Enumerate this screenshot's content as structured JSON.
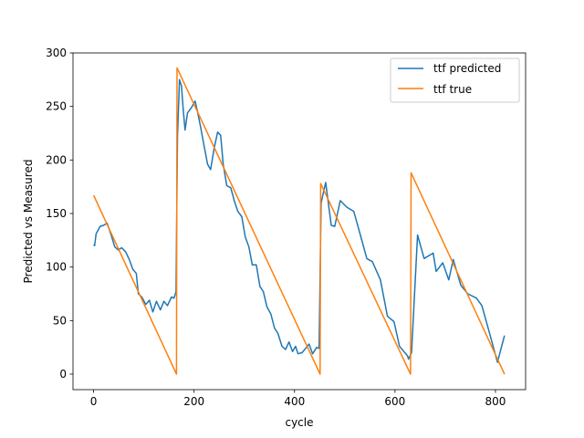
{
  "chart_data": {
    "type": "line",
    "title": "",
    "xlabel": "cycle",
    "ylabel": "Predicted vs Measured",
    "xlim": [
      -41,
      860
    ],
    "ylim": [
      -14.5,
      300
    ],
    "xticks": [
      0,
      200,
      400,
      600,
      800
    ],
    "yticks": [
      0,
      50,
      100,
      150,
      200,
      250,
      300
    ],
    "grid": false,
    "legend_position": "top-right",
    "series": [
      {
        "name": "ttf predicted",
        "color": "#1f77b4",
        "x": [
          0,
          2,
          5,
          13,
          20,
          27,
          35,
          42,
          49,
          56,
          64,
          71,
          78,
          85,
          89,
          96,
          104,
          111,
          118,
          125,
          133,
          140,
          147,
          155,
          160,
          164,
          167,
          171,
          175,
          178,
          182,
          187,
          195,
          202,
          207,
          213,
          220,
          227,
          233,
          240,
          247,
          253,
          258,
          265,
          273,
          280,
          287,
          295,
          302,
          309,
          316,
          324,
          331,
          338,
          345,
          353,
          360,
          367,
          375,
          382,
          389,
          396,
          402,
          407,
          415,
          422,
          429,
          436,
          444,
          449,
          453,
          462,
          473,
          480,
          491,
          504,
          518,
          531,
          544,
          555,
          571,
          585,
          598,
          609,
          625,
          627,
          633,
          645,
          658,
          676,
          682,
          695,
          707,
          716,
          731,
          745,
          762,
          773,
          789,
          804,
          809,
          818
        ],
        "y": [
          121,
          120,
          131,
          138,
          139,
          141,
          130,
          119,
          116,
          118,
          114,
          107,
          98,
          94,
          75,
          72,
          65,
          69,
          58,
          68,
          60,
          68,
          64,
          72,
          71,
          77,
          222,
          275,
          269,
          249,
          228,
          244,
          249,
          255,
          245,
          231,
          213,
          196,
          191,
          211,
          226,
          223,
          196,
          176,
          174,
          162,
          152,
          147,
          128,
          119,
          102,
          102,
          82,
          77,
          63,
          56,
          43,
          38,
          26,
          23,
          30,
          21,
          26,
          19,
          20,
          24,
          28,
          19,
          25,
          24,
          160,
          179,
          139,
          138,
          162,
          156,
          152,
          130,
          108,
          105,
          88,
          54,
          49,
          26,
          17,
          14,
          20,
          130,
          108,
          113,
          96,
          104,
          88,
          107,
          83,
          75,
          71,
          64,
          37,
          11,
          20,
          36
        ]
      },
      {
        "name": "ttf true",
        "color": "#ff7f0e",
        "x": [
          0,
          165,
          166,
          451,
          452,
          631,
          632,
          818
        ],
        "y": [
          167,
          0,
          286,
          0,
          178,
          0,
          188,
          0
        ]
      }
    ]
  }
}
